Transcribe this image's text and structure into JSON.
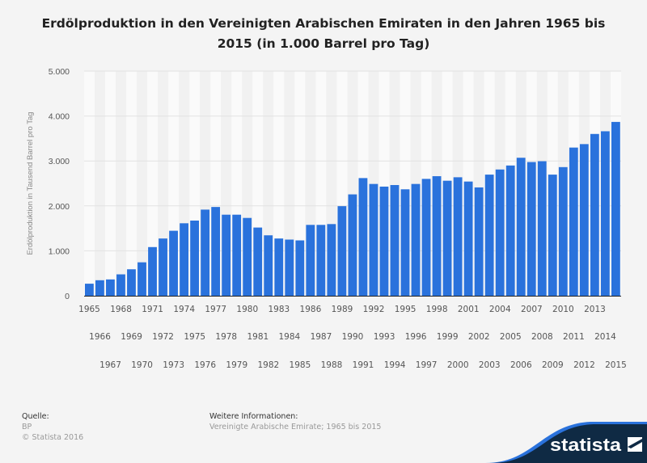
{
  "chart_data": {
    "type": "bar",
    "title": "Erdölproduktion in den Vereinigten Arabischen Emiraten in den Jahren 1965 bis 2015 (in 1.000 Barrel pro Tag)",
    "ylabel": "Erdölproduktion in Tausend Barrel pro Tag",
    "xlabel": "",
    "ylim": [
      0,
      5000
    ],
    "yticks": [
      "0",
      "1.000",
      "2.000",
      "3.000",
      "4.000",
      "5.000"
    ],
    "grid": true,
    "bar_color": "#2a72dc",
    "categories": [
      "1965",
      "1966",
      "1967",
      "1968",
      "1969",
      "1970",
      "1971",
      "1972",
      "1973",
      "1974",
      "1975",
      "1976",
      "1977",
      "1978",
      "1979",
      "1980",
      "1981",
      "1982",
      "1983",
      "1984",
      "1985",
      "1986",
      "1987",
      "1988",
      "1989",
      "1990",
      "1991",
      "1992",
      "1993",
      "1994",
      "1995",
      "1996",
      "1997",
      "1998",
      "1999",
      "2000",
      "2001",
      "2002",
      "2003",
      "2004",
      "2005",
      "2006",
      "2007",
      "2008",
      "2009",
      "2010",
      "2011",
      "2012",
      "2013",
      "2014",
      "2015"
    ],
    "values": [
      268,
      345,
      363,
      476,
      589,
      744,
      1083,
      1274,
      1446,
      1613,
      1673,
      1917,
      1976,
      1804,
      1804,
      1732,
      1518,
      1345,
      1274,
      1250,
      1232,
      1577,
      1577,
      1595,
      1994,
      2256,
      2619,
      2488,
      2429,
      2464,
      2369,
      2488,
      2601,
      2661,
      2560,
      2637,
      2542,
      2411,
      2696,
      2810,
      2899,
      3071,
      2976,
      2994,
      2696,
      2863,
      3298,
      3375,
      3601,
      3661,
      3869
    ]
  },
  "footer": {
    "source_label": "Quelle:",
    "source": "BP",
    "copyright": "© Statista 2016",
    "info_label": "Weitere Informationen:",
    "info": "Vereinigte Arabische Emirate; 1965 bis 2015"
  },
  "logo": {
    "text": "statista"
  }
}
